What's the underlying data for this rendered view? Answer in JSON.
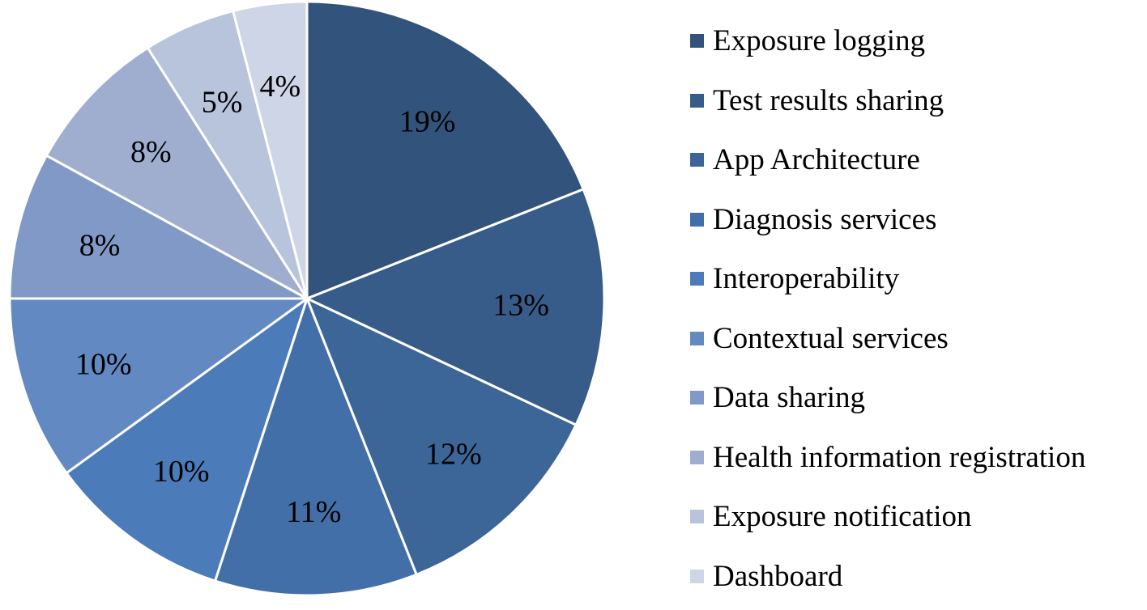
{
  "chart_data": {
    "type": "pie",
    "start_angle_deg": 0,
    "direction": "clockwise",
    "legend_position": "right",
    "slices": [
      {
        "name": "Exposure logging",
        "value": 19,
        "label": "19%",
        "color": "#32537C"
      },
      {
        "name": "Test results sharing",
        "value": 13,
        "label": "13%",
        "color": "#385C89"
      },
      {
        "name": "App Architecture",
        "value": 12,
        "label": "12%",
        "color": "#3C6598"
      },
      {
        "name": "Diagnosis services",
        "value": 11,
        "label": "11%",
        "color": "#426FA8"
      },
      {
        "name": "Interoperability",
        "value": 10,
        "label": "10%",
        "color": "#4B7BB9"
      },
      {
        "name": "Contextual services",
        "value": 10,
        "label": "10%",
        "color": "#6389C2"
      },
      {
        "name": "Data sharing",
        "value": 8,
        "label": "8%",
        "color": "#8199C6"
      },
      {
        "name": "Health information registration",
        "value": 8,
        "label": "8%",
        "color": "#9FAECF"
      },
      {
        "name": "Exposure notification",
        "value": 5,
        "label": "5%",
        "color": "#B8C3DC"
      },
      {
        "name": "Dashboard",
        "value": 4,
        "label": "4%",
        "color": "#CDD5E6"
      }
    ]
  }
}
